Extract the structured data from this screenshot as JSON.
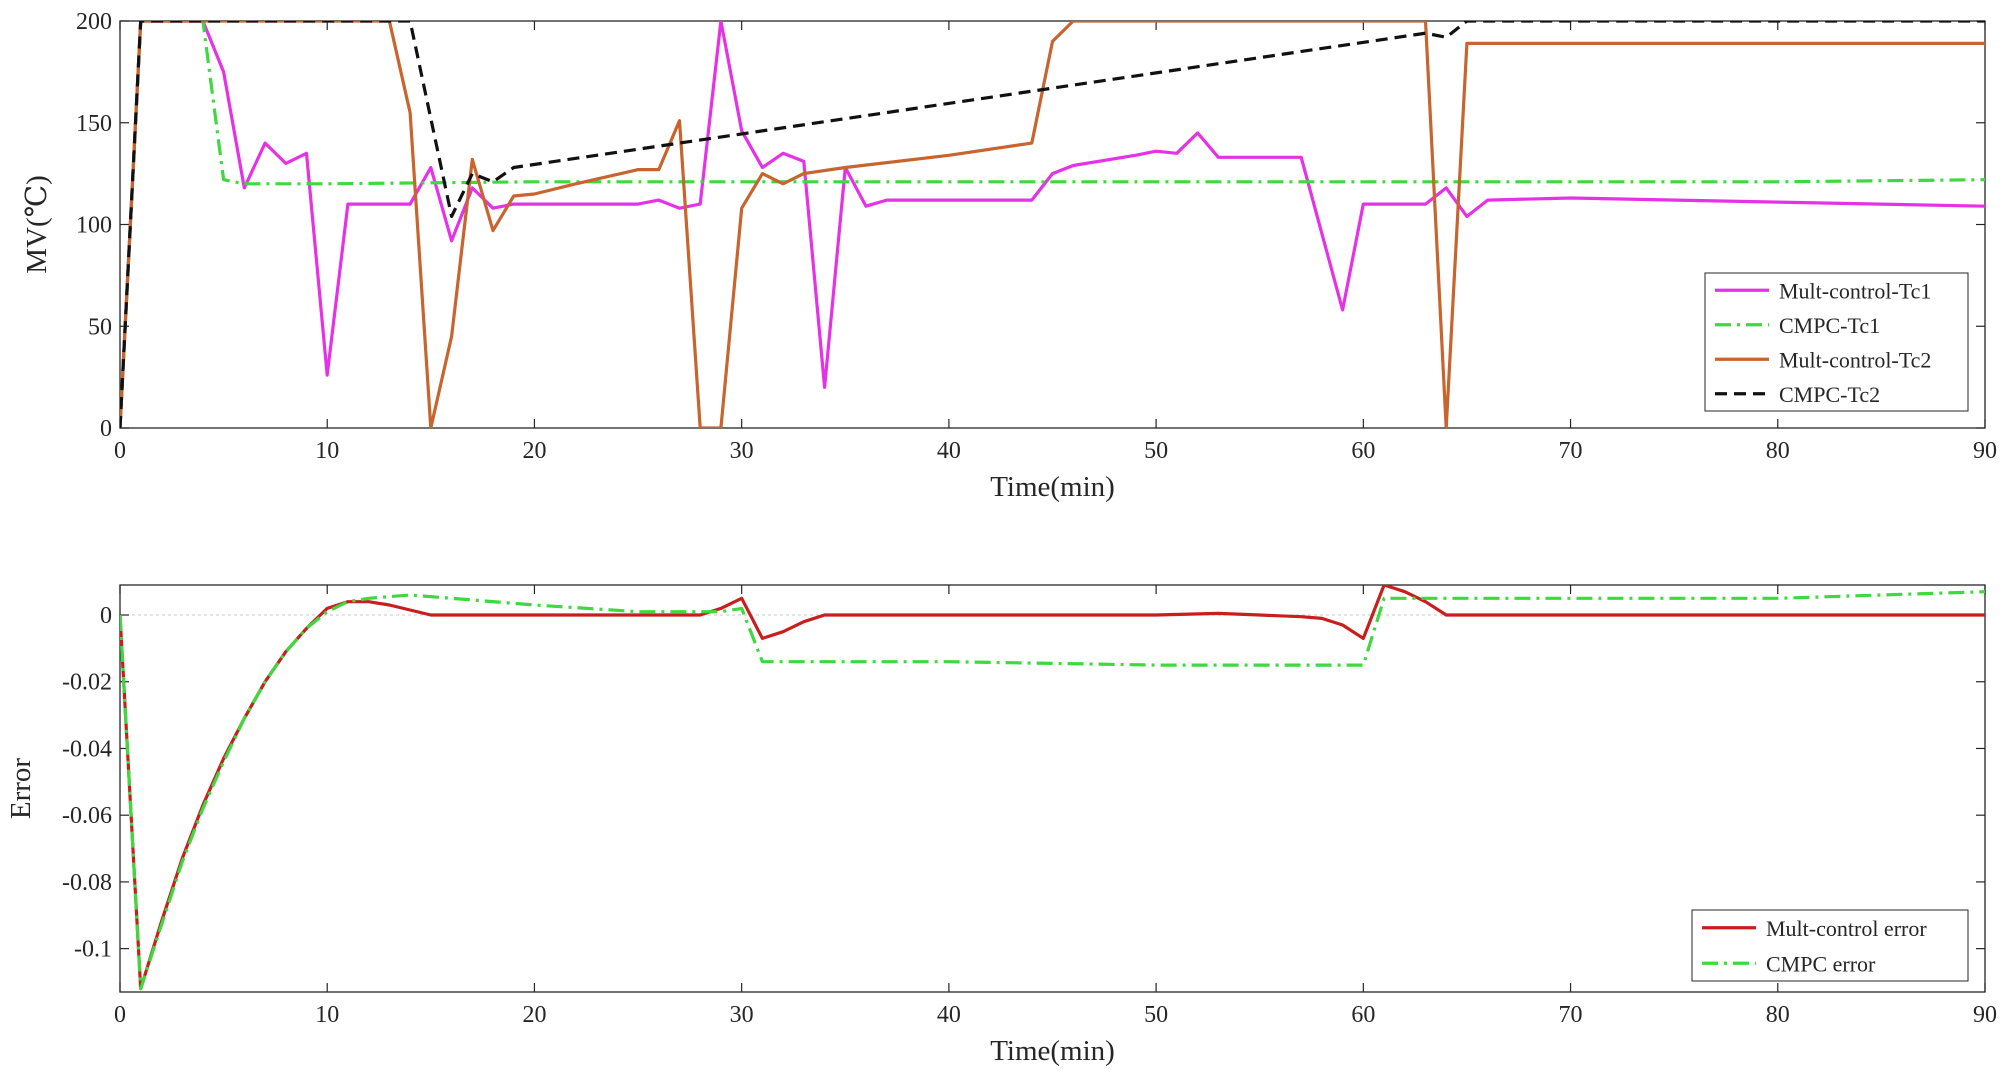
{
  "chart_data": [
    {
      "type": "line",
      "xlabel": "Time(min)",
      "ylabel": "MV(℃)",
      "xlim": [
        0,
        90
      ],
      "ylim": [
        0,
        200
      ],
      "xticks": [
        0,
        10,
        20,
        30,
        40,
        50,
        60,
        70,
        80,
        90
      ],
      "yticks": [
        0,
        50,
        100,
        150,
        200
      ],
      "grid": false,
      "legend_position": "bottom-right",
      "series": [
        {
          "name": "Mult-control-Tc1",
          "color": "#e632e6",
          "style": "solid",
          "x": [
            0,
            1,
            4,
            5,
            6,
            7,
            8,
            9,
            10,
            11,
            14,
            15,
            16,
            17,
            18,
            19,
            21,
            25,
            26,
            27,
            28,
            29,
            30,
            31,
            32,
            33,
            34,
            35,
            36,
            37,
            40,
            44,
            45,
            46,
            49,
            50,
            51,
            52,
            53,
            57,
            59,
            60,
            63,
            64,
            65,
            66,
            70,
            80,
            90
          ],
          "y": [
            0,
            200,
            200,
            175,
            118,
            140,
            130,
            135,
            26,
            110,
            110,
            128,
            92,
            118,
            108,
            110,
            110,
            110,
            112,
            108,
            110,
            200,
            146,
            128,
            135,
            131,
            20,
            128,
            109,
            112,
            112,
            112,
            125,
            129,
            134,
            136,
            135,
            145,
            133,
            133,
            58,
            110,
            110,
            118,
            104,
            112,
            113,
            111,
            109
          ]
        },
        {
          "name": "CMPC-Tc1",
          "color": "#3ed93e",
          "style": "dashdot",
          "x": [
            0,
            1,
            4,
            5,
            6,
            8,
            10,
            20,
            30,
            40,
            50,
            60,
            70,
            80,
            90
          ],
          "y": [
            0,
            200,
            200,
            122,
            120,
            120,
            120,
            121,
            121,
            121,
            121,
            121,
            121,
            121,
            122
          ]
        },
        {
          "name": "Mult-control-Tc2",
          "color": "#c8642d",
          "style": "solid",
          "x": [
            0,
            1,
            13,
            14,
            15,
            16,
            17,
            18,
            19,
            20,
            22,
            25,
            26,
            27,
            28,
            29,
            30,
            31,
            32,
            33,
            35,
            40,
            44,
            45,
            46,
            63,
            64,
            65,
            90
          ],
          "y": [
            0,
            200,
            200,
            155,
            0,
            45,
            132,
            97,
            114,
            115,
            120,
            127,
            127,
            151,
            0,
            0,
            108,
            125,
            120,
            125,
            128,
            134,
            140,
            190,
            200,
            200,
            0,
            189,
            189
          ]
        },
        {
          "name": "CMPC-Tc2",
          "color": "#111111",
          "style": "dashed",
          "x": [
            0,
            1,
            14,
            16,
            17,
            18,
            19,
            63,
            64,
            65,
            90
          ],
          "y": [
            0,
            200,
            200,
            104,
            125,
            121,
            128,
            194,
            192,
            200,
            200
          ]
        }
      ]
    },
    {
      "type": "line",
      "xlabel": "Time(min)",
      "ylabel": "Error",
      "xlim": [
        0,
        90
      ],
      "ylim": [
        -0.113,
        0.009
      ],
      "xticks": [
        0,
        10,
        20,
        30,
        40,
        50,
        60,
        70,
        80,
        90
      ],
      "yticks": [
        0,
        -0.02,
        -0.04,
        -0.06,
        -0.08,
        -0.1
      ],
      "ytick_labels": [
        "0",
        "-0.02",
        "-0.04",
        "-0.06",
        "-0.08",
        "-0.1"
      ],
      "grid": false,
      "zero_line": true,
      "legend_position": "bottom-right",
      "series": [
        {
          "name": "Mult-control error",
          "color": "#c81e1e",
          "style": "solid",
          "x": [
            0,
            1,
            2,
            3,
            4,
            5,
            6,
            7,
            8,
            9,
            10,
            11,
            12,
            13,
            15,
            20,
            28,
            29,
            30,
            31,
            32,
            33,
            34,
            40,
            50,
            53,
            55,
            57,
            58,
            59,
            60,
            61,
            62,
            63,
            64,
            70,
            80,
            90
          ],
          "y": [
            0,
            -0.112,
            -0.092,
            -0.073,
            -0.057,
            -0.043,
            -0.031,
            -0.02,
            -0.011,
            -0.004,
            0.002,
            0.004,
            0.004,
            0.003,
            0,
            0,
            0,
            0.002,
            0.005,
            -0.007,
            -0.005,
            -0.002,
            0,
            0,
            0,
            0.0005,
            0,
            -0.0005,
            -0.001,
            -0.003,
            -0.007,
            0.009,
            0.007,
            0.004,
            0,
            0,
            0,
            0
          ]
        },
        {
          "name": "CMPC error",
          "color": "#3ed93e",
          "style": "dashdot",
          "x": [
            0,
            1,
            2,
            3,
            4,
            5,
            6,
            7,
            8,
            9,
            10,
            11,
            12,
            14,
            16,
            20,
            25,
            29,
            30,
            31,
            40,
            50,
            55,
            58,
            60,
            61,
            70,
            80,
            90
          ],
          "y": [
            0,
            -0.112,
            -0.093,
            -0.074,
            -0.058,
            -0.044,
            -0.031,
            -0.02,
            -0.011,
            -0.004,
            0.001,
            0.004,
            0.005,
            0.006,
            0.005,
            0.003,
            0.001,
            0.001,
            0.002,
            -0.014,
            -0.014,
            -0.015,
            -0.015,
            -0.015,
            -0.015,
            0.005,
            0.005,
            0.005,
            0.007
          ]
        }
      ]
    }
  ]
}
